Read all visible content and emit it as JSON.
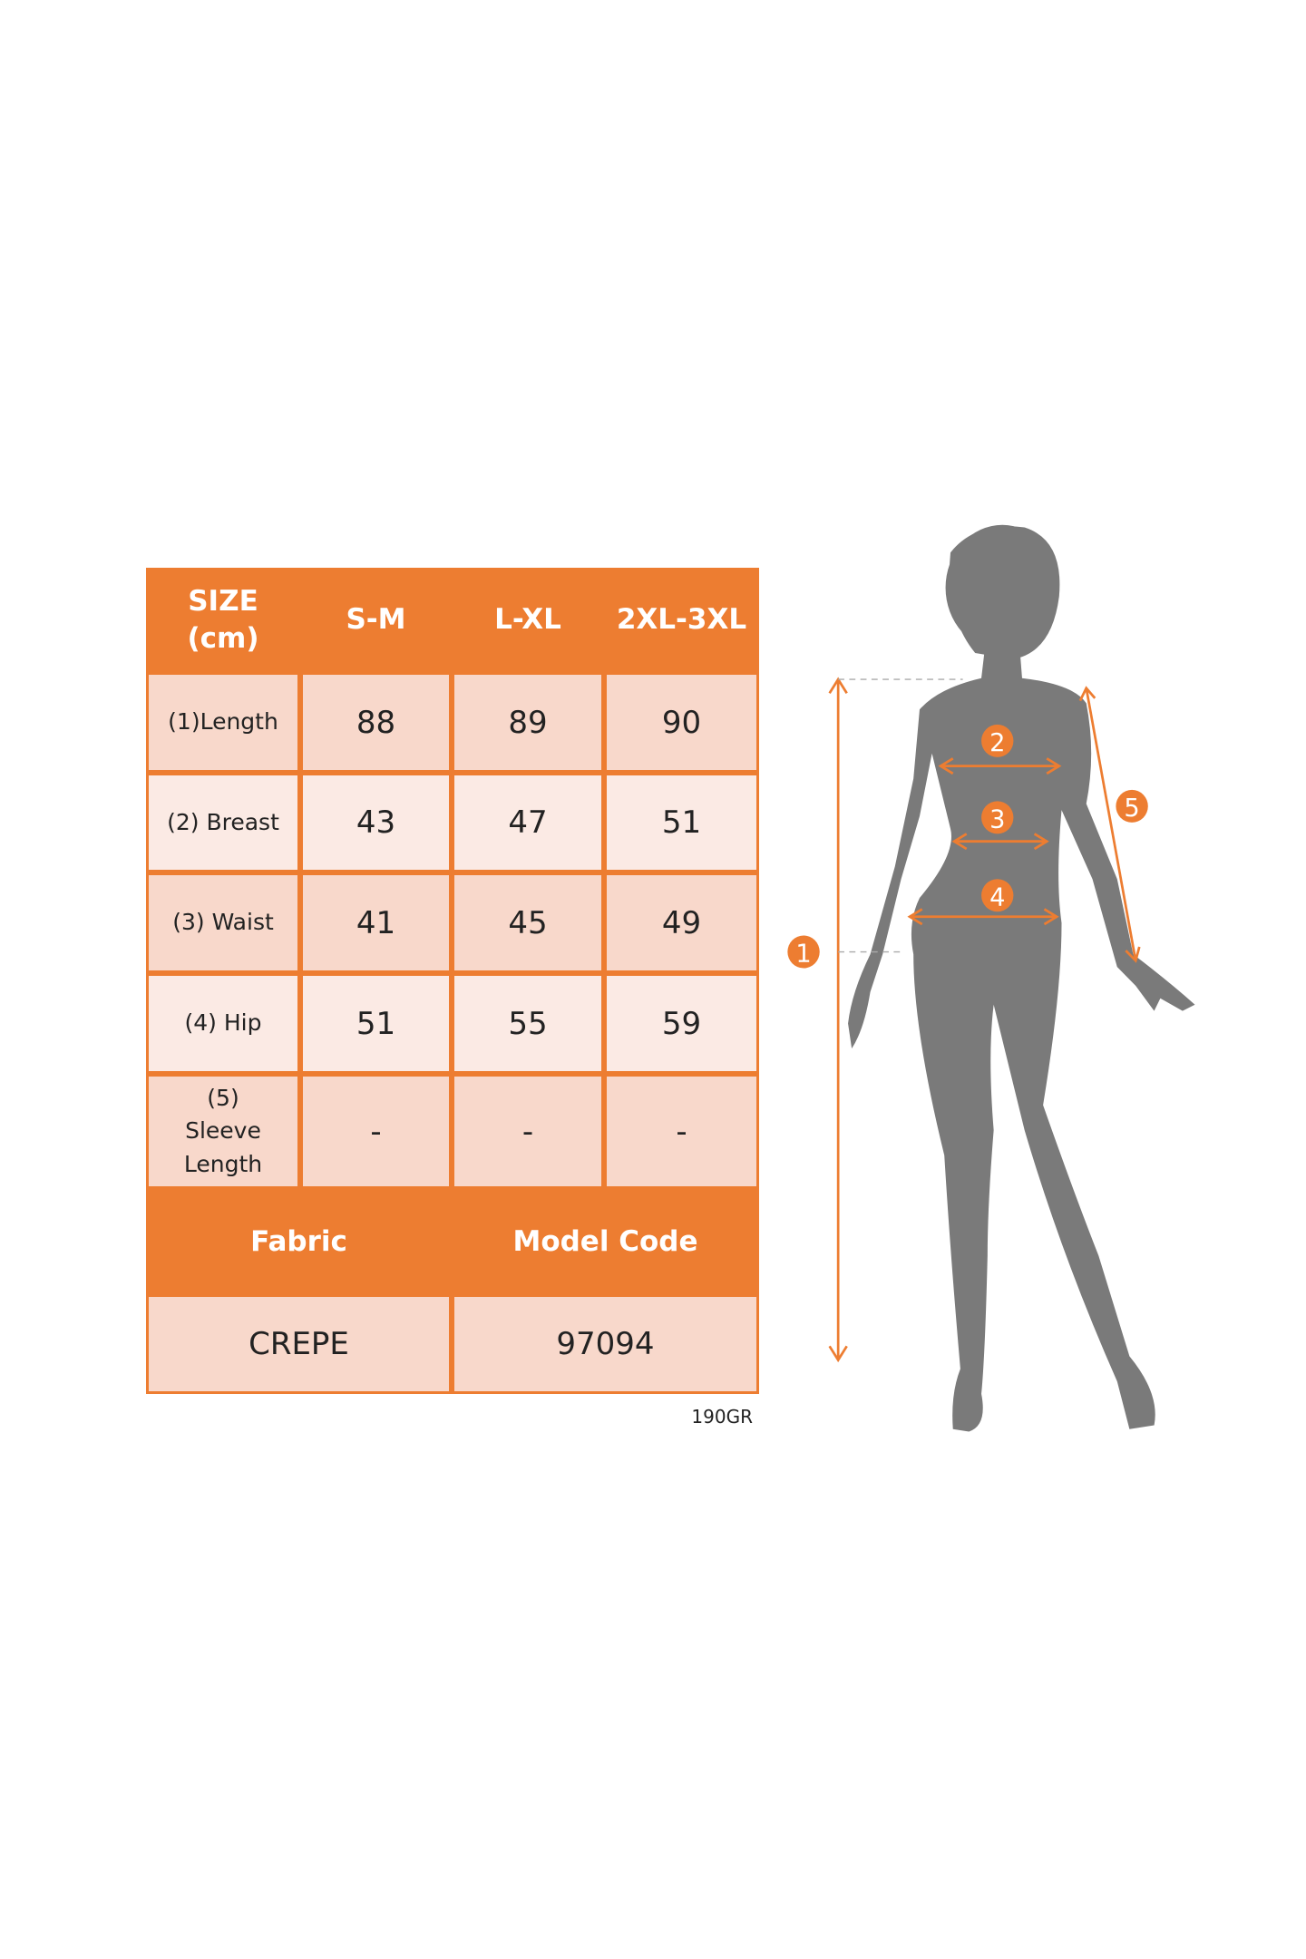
{
  "table": {
    "header": {
      "size_label": "SIZE (cm)",
      "columns": [
        "S-M",
        "L-XL",
        "2XL-3XL"
      ]
    },
    "rows": [
      {
        "label": "(1)Length",
        "values": [
          "88",
          "89",
          "90"
        ]
      },
      {
        "label": "(2) Breast",
        "values": [
          "43",
          "47",
          "51"
        ]
      },
      {
        "label": "(3) Waist",
        "values": [
          "41",
          "45",
          "49"
        ]
      },
      {
        "label": "(4) Hip",
        "values": [
          "51",
          "55",
          "59"
        ]
      },
      {
        "label": "(5) Sleeve Length",
        "values": [
          "-",
          "-",
          "-"
        ]
      }
    ],
    "footer": {
      "fabric_label": "Fabric",
      "model_code_label": "Model Code",
      "fabric": "CREPE",
      "model_code": "97094"
    }
  },
  "weight_code": "190GR",
  "figure": {
    "markers": [
      "1",
      "2",
      "3",
      "4",
      "5"
    ]
  },
  "colors": {
    "accent": "#ED7D31",
    "cell_dark": "#F8D8CB",
    "cell_light": "#FBEAE4",
    "silhouette": "#7A7A7A"
  }
}
